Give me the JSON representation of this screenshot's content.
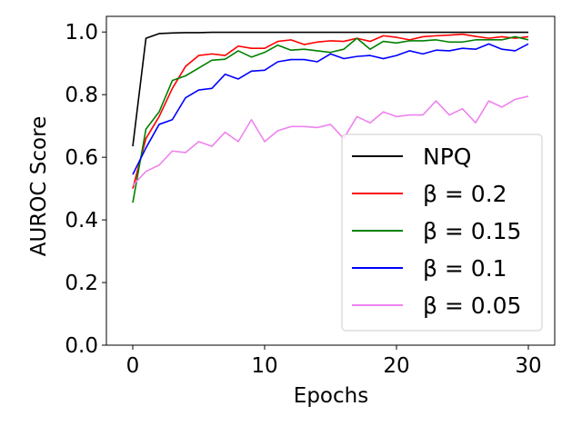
{
  "chart_data": {
    "type": "line",
    "title": "",
    "xlabel": "Epochs",
    "ylabel": "AUROC Score",
    "xlim": [
      -2,
      32
    ],
    "ylim": [
      0.0,
      1.05
    ],
    "xticks": [
      0,
      10,
      20,
      30
    ],
    "xtick_labels": [
      "0",
      "10",
      "20",
      "30"
    ],
    "yticks": [
      0.0,
      0.2,
      0.4,
      0.6,
      0.8,
      1.0
    ],
    "ytick_labels": [
      "0.0",
      "0.2",
      "0.4",
      "0.6",
      "0.8",
      "1.0"
    ],
    "grid": false,
    "legend_position": "lower-right",
    "x": [
      0,
      1,
      2,
      3,
      4,
      5,
      6,
      7,
      8,
      9,
      10,
      11,
      12,
      13,
      14,
      15,
      16,
      17,
      18,
      19,
      20,
      21,
      22,
      23,
      24,
      25,
      26,
      27,
      28,
      29,
      30
    ],
    "series": [
      {
        "name": "NPQ",
        "color": "#000000",
        "values": [
          0.635,
          0.98,
          0.995,
          0.997,
          0.998,
          0.998,
          0.999,
          0.999,
          0.999,
          0.999,
          0.999,
          0.999,
          0.999,
          0.999,
          0.999,
          0.999,
          0.999,
          0.999,
          0.999,
          0.999,
          0.999,
          0.999,
          0.999,
          0.999,
          0.999,
          0.999,
          0.999,
          0.999,
          0.999,
          0.999,
          0.999
        ]
      },
      {
        "name": "β = 0.2",
        "color": "#ff0000",
        "values": [
          0.5,
          0.66,
          0.73,
          0.82,
          0.89,
          0.925,
          0.93,
          0.925,
          0.955,
          0.948,
          0.948,
          0.97,
          0.975,
          0.96,
          0.968,
          0.972,
          0.97,
          0.98,
          0.97,
          0.988,
          0.983,
          0.975,
          0.985,
          0.988,
          0.99,
          0.993,
          0.986,
          0.98,
          0.985,
          0.98,
          0.985
        ]
      },
      {
        "name": "β = 0.15",
        "color": "#008000",
        "values": [
          0.455,
          0.69,
          0.745,
          0.845,
          0.86,
          0.885,
          0.91,
          0.913,
          0.94,
          0.92,
          0.935,
          0.958,
          0.942,
          0.945,
          0.94,
          0.935,
          0.945,
          0.98,
          0.945,
          0.97,
          0.965,
          0.972,
          0.972,
          0.975,
          0.968,
          0.968,
          0.975,
          0.975,
          0.975,
          0.985,
          0.975
        ]
      },
      {
        "name": "β = 0.1",
        "color": "#0000ff",
        "values": [
          0.545,
          0.63,
          0.705,
          0.72,
          0.79,
          0.815,
          0.82,
          0.865,
          0.85,
          0.875,
          0.878,
          0.905,
          0.912,
          0.912,
          0.905,
          0.93,
          0.915,
          0.922,
          0.925,
          0.915,
          0.925,
          0.94,
          0.93,
          0.942,
          0.94,
          0.948,
          0.945,
          0.962,
          0.945,
          0.94,
          0.962
        ]
      },
      {
        "name": "β = 0.05",
        "color": "#ee82ee",
        "values": [
          0.51,
          0.555,
          0.575,
          0.62,
          0.615,
          0.65,
          0.635,
          0.68,
          0.65,
          0.72,
          0.65,
          0.685,
          0.698,
          0.698,
          0.695,
          0.705,
          0.66,
          0.73,
          0.71,
          0.745,
          0.73,
          0.735,
          0.735,
          0.78,
          0.735,
          0.755,
          0.71,
          0.78,
          0.76,
          0.785,
          0.795
        ]
      }
    ]
  }
}
